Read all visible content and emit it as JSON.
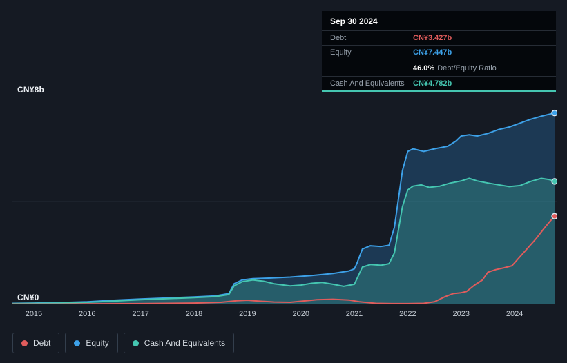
{
  "axis": {
    "y_top": "CN¥8b",
    "y_bottom": "CN¥0"
  },
  "tooltip": {
    "date": "Sep 30 2024",
    "debt_label": "Debt",
    "debt_value": "CN¥3.427b",
    "equity_label": "Equity",
    "equity_value": "CN¥7.447b",
    "ratio_value": "46.0%",
    "ratio_label": "Debt/Equity Ratio",
    "cash_label": "Cash And Equivalents",
    "cash_value": "CN¥4.782b"
  },
  "legend": {
    "items": [
      {
        "label": "Debt",
        "color": "#e05c5c"
      },
      {
        "label": "Equity",
        "color": "#3da1e8"
      },
      {
        "label": "Cash And Equivalents",
        "color": "#45c6b1"
      }
    ]
  },
  "chart_data": {
    "type": "area",
    "title": "Debt, Equity and Cash And Equivalents over time",
    "y_unit": "CN¥ billions",
    "x_domain": [
      2014.6,
      2024.8
    ],
    "y_domain": [
      0,
      8
    ],
    "y_gridlines": [
      0,
      2,
      4,
      6,
      8
    ],
    "y_ticks": [
      {
        "value": 8,
        "label": "CN¥8b"
      },
      {
        "value": 0,
        "label": "CN¥0"
      }
    ],
    "x_ticks": [
      {
        "value": 2015,
        "label": "2015"
      },
      {
        "value": 2016,
        "label": "2016"
      },
      {
        "value": 2017,
        "label": "2017"
      },
      {
        "value": 2018,
        "label": "2018"
      },
      {
        "value": 2019,
        "label": "2019"
      },
      {
        "value": 2020,
        "label": "2020"
      },
      {
        "value": 2021,
        "label": "2021"
      },
      {
        "value": 2022,
        "label": "2022"
      },
      {
        "value": 2023,
        "label": "2023"
      },
      {
        "value": 2024,
        "label": "2024"
      }
    ],
    "legend_position": "bottom-left",
    "grid": true,
    "end_markers": true,
    "series": [
      {
        "name": "Equity",
        "color": "#3da1e8",
        "fill": "rgba(45,130,200,0.30)",
        "final_label": "CN¥7.447b",
        "points": [
          [
            2014.6,
            0.04
          ],
          [
            2015,
            0.05
          ],
          [
            2015.5,
            0.07
          ],
          [
            2016,
            0.1
          ],
          [
            2016.5,
            0.16
          ],
          [
            2017,
            0.21
          ],
          [
            2017.5,
            0.25
          ],
          [
            2018,
            0.29
          ],
          [
            2018.4,
            0.33
          ],
          [
            2018.65,
            0.42
          ],
          [
            2018.75,
            0.8
          ],
          [
            2018.9,
            0.95
          ],
          [
            2019.1,
            1.0
          ],
          [
            2019.4,
            1.02
          ],
          [
            2019.8,
            1.06
          ],
          [
            2020.2,
            1.12
          ],
          [
            2020.6,
            1.2
          ],
          [
            2020.9,
            1.3
          ],
          [
            2021.0,
            1.38
          ],
          [
            2021.05,
            1.6
          ],
          [
            2021.15,
            2.15
          ],
          [
            2021.3,
            2.28
          ],
          [
            2021.5,
            2.25
          ],
          [
            2021.65,
            2.3
          ],
          [
            2021.75,
            3.0
          ],
          [
            2021.9,
            5.2
          ],
          [
            2022.0,
            5.95
          ],
          [
            2022.1,
            6.05
          ],
          [
            2022.3,
            5.95
          ],
          [
            2022.5,
            6.05
          ],
          [
            2022.75,
            6.15
          ],
          [
            2022.9,
            6.35
          ],
          [
            2023.0,
            6.55
          ],
          [
            2023.15,
            6.6
          ],
          [
            2023.3,
            6.55
          ],
          [
            2023.5,
            6.65
          ],
          [
            2023.7,
            6.8
          ],
          [
            2023.9,
            6.9
          ],
          [
            2024.1,
            7.05
          ],
          [
            2024.3,
            7.2
          ],
          [
            2024.5,
            7.32
          ],
          [
            2024.75,
            7.447
          ]
        ]
      },
      {
        "name": "Cash And Equivalents",
        "color": "#45c6b1",
        "fill": "rgba(63,186,166,0.28)",
        "final_label": "CN¥4.782b",
        "points": [
          [
            2014.6,
            0.03
          ],
          [
            2015,
            0.04
          ],
          [
            2015.5,
            0.05
          ],
          [
            2016,
            0.08
          ],
          [
            2016.5,
            0.13
          ],
          [
            2017,
            0.18
          ],
          [
            2017.5,
            0.22
          ],
          [
            2018,
            0.26
          ],
          [
            2018.4,
            0.3
          ],
          [
            2018.65,
            0.38
          ],
          [
            2018.75,
            0.72
          ],
          [
            2018.9,
            0.88
          ],
          [
            2019.1,
            0.95
          ],
          [
            2019.3,
            0.9
          ],
          [
            2019.5,
            0.8
          ],
          [
            2019.8,
            0.72
          ],
          [
            2020.0,
            0.75
          ],
          [
            2020.2,
            0.82
          ],
          [
            2020.4,
            0.85
          ],
          [
            2020.6,
            0.78
          ],
          [
            2020.8,
            0.7
          ],
          [
            2021.0,
            0.78
          ],
          [
            2021.05,
            1.0
          ],
          [
            2021.15,
            1.45
          ],
          [
            2021.3,
            1.55
          ],
          [
            2021.5,
            1.52
          ],
          [
            2021.65,
            1.58
          ],
          [
            2021.75,
            2.0
          ],
          [
            2021.9,
            3.8
          ],
          [
            2022.0,
            4.45
          ],
          [
            2022.1,
            4.6
          ],
          [
            2022.25,
            4.65
          ],
          [
            2022.4,
            4.55
          ],
          [
            2022.6,
            4.6
          ],
          [
            2022.8,
            4.72
          ],
          [
            2023.0,
            4.8
          ],
          [
            2023.15,
            4.9
          ],
          [
            2023.3,
            4.8
          ],
          [
            2023.5,
            4.72
          ],
          [
            2023.7,
            4.65
          ],
          [
            2023.9,
            4.58
          ],
          [
            2024.1,
            4.62
          ],
          [
            2024.3,
            4.78
          ],
          [
            2024.5,
            4.9
          ],
          [
            2024.65,
            4.85
          ],
          [
            2024.75,
            4.782
          ]
        ]
      },
      {
        "name": "Debt",
        "color": "#e05c5c",
        "fill": "none",
        "final_label": "CN¥3.427b",
        "points": [
          [
            2014.6,
            0.01
          ],
          [
            2015.5,
            0.01
          ],
          [
            2016,
            0.02
          ],
          [
            2017,
            0.03
          ],
          [
            2018,
            0.05
          ],
          [
            2018.5,
            0.08
          ],
          [
            2018.8,
            0.14
          ],
          [
            2019.0,
            0.16
          ],
          [
            2019.2,
            0.13
          ],
          [
            2019.5,
            0.09
          ],
          [
            2019.8,
            0.08
          ],
          [
            2020.0,
            0.12
          ],
          [
            2020.3,
            0.18
          ],
          [
            2020.6,
            0.2
          ],
          [
            2020.9,
            0.17
          ],
          [
            2021.1,
            0.1
          ],
          [
            2021.4,
            0.04
          ],
          [
            2021.7,
            0.03
          ],
          [
            2022.0,
            0.03
          ],
          [
            2022.3,
            0.04
          ],
          [
            2022.5,
            0.1
          ],
          [
            2022.7,
            0.3
          ],
          [
            2022.85,
            0.42
          ],
          [
            2023.0,
            0.45
          ],
          [
            2023.1,
            0.5
          ],
          [
            2023.25,
            0.75
          ],
          [
            2023.4,
            0.95
          ],
          [
            2023.5,
            1.25
          ],
          [
            2023.65,
            1.35
          ],
          [
            2023.8,
            1.42
          ],
          [
            2023.95,
            1.5
          ],
          [
            2024.1,
            1.85
          ],
          [
            2024.25,
            2.2
          ],
          [
            2024.4,
            2.55
          ],
          [
            2024.55,
            2.95
          ],
          [
            2024.65,
            3.2
          ],
          [
            2024.75,
            3.427
          ]
        ]
      }
    ]
  }
}
